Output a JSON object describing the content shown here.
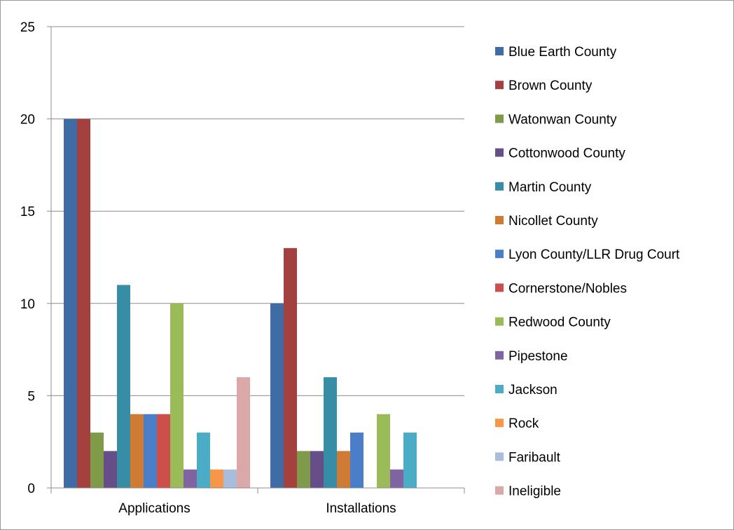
{
  "chart_data": {
    "type": "bar",
    "categories": [
      "Applications",
      "Installations"
    ],
    "ylim": [
      0,
      25
    ],
    "yticks": [
      0,
      5,
      10,
      15,
      20,
      25
    ],
    "grid": true,
    "legend_position": "right",
    "title": "",
    "xlabel": "",
    "ylabel": "",
    "series": [
      {
        "name": "Blue Earth County",
        "color": "#3F6CA5",
        "values": [
          20,
          10
        ]
      },
      {
        "name": "Brown County",
        "color": "#A4403D",
        "values": [
          20,
          13
        ]
      },
      {
        "name": "Watonwan County",
        "color": "#7F9A48",
        "values": [
          3,
          2
        ]
      },
      {
        "name": "Cottonwood County",
        "color": "#664F88",
        "values": [
          2,
          2
        ]
      },
      {
        "name": "Martin County",
        "color": "#378DA5",
        "values": [
          11,
          6
        ]
      },
      {
        "name": "Nicollet County",
        "color": "#D07B34",
        "values": [
          4,
          2
        ]
      },
      {
        "name": "Lyon County/LLR Drug Court",
        "color": "#4A7EC8",
        "values": [
          4,
          3
        ]
      },
      {
        "name": "Cornerstone/Nobles",
        "color": "#CC4F4C",
        "values": [
          4,
          0
        ]
      },
      {
        "name": "Redwood County",
        "color": "#9BBB59",
        "values": [
          10,
          4
        ]
      },
      {
        "name": "Pipestone",
        "color": "#8064A2",
        "values": [
          1,
          1
        ]
      },
      {
        "name": "Jackson",
        "color": "#4BACC6",
        "values": [
          3,
          3
        ]
      },
      {
        "name": "Rock",
        "color": "#F79646",
        "values": [
          1,
          0
        ]
      },
      {
        "name": "Faribault",
        "color": "#A9BCDB",
        "values": [
          1,
          0
        ]
      },
      {
        "name": "Ineligible",
        "color": "#DAA8A8",
        "values": [
          6,
          0
        ]
      }
    ]
  }
}
